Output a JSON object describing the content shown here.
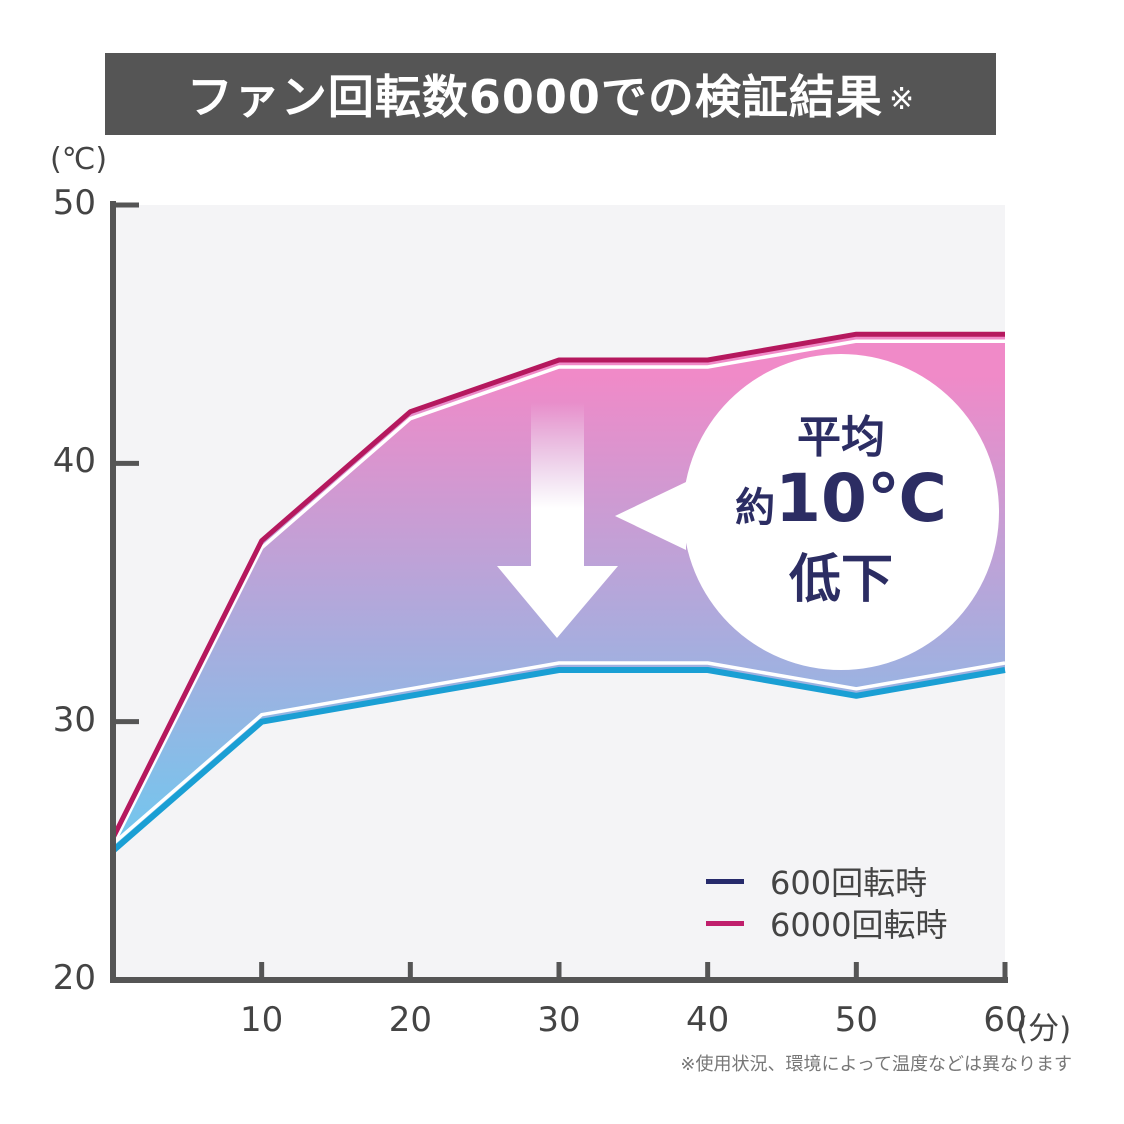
{
  "header": {
    "title": "ファン回転数6000での検証結果",
    "note_mark": "※"
  },
  "chart_data": {
    "type": "area",
    "title": "ファン回転数6000での検証結果",
    "y_unit": "(℃)",
    "x_unit": "(分)",
    "ylim": [
      20,
      50
    ],
    "xlim": [
      0,
      60
    ],
    "yticks": [
      20,
      30,
      40,
      50
    ],
    "xticks": [
      10,
      20,
      30,
      40,
      50,
      60
    ],
    "x": [
      0,
      10,
      20,
      30,
      40,
      50,
      60
    ],
    "series": [
      {
        "name": "600回転時",
        "values": [
          25.5,
          37,
          42,
          44,
          44,
          45,
          45
        ],
        "color": "#b5185e"
      },
      {
        "name": "6000回転時",
        "values": [
          25,
          30,
          31,
          32,
          32,
          31,
          32
        ],
        "color": "#1a9fd4"
      }
    ],
    "legend": [
      {
        "label": "600回転時",
        "color": "#262a6b"
      },
      {
        "label": "6000回転時",
        "color": "#c01f6c"
      }
    ],
    "legend_position": "bottom-right",
    "annotation": {
      "line1": "平均",
      "line2_prefix": "約",
      "line2_value": "10℃",
      "line3": "低下"
    },
    "gradient_colors": {
      "top": "#f08ac8",
      "bottom": "#6fc8ef"
    },
    "plot_bg": "#f4f4f6",
    "axis_color": "#555555"
  },
  "footnote": "※使用状況、環境によって温度などは異なります"
}
